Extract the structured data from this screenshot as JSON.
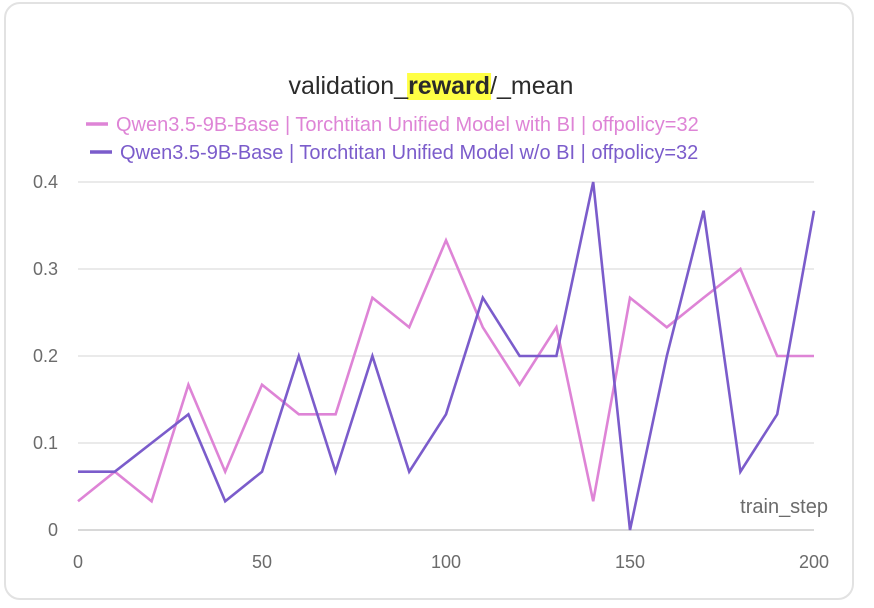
{
  "chart_data": {
    "type": "line",
    "title": {
      "prefix": "validation_",
      "highlight": "reward",
      "suffix": "/_mean",
      "highlight_color": "#ffff44"
    },
    "xlabel": "train_step",
    "ylabel": "",
    "xlim": [
      0,
      200
    ],
    "ylim": [
      0,
      0.4
    ],
    "xticks": [
      "0",
      "50",
      "100",
      "150",
      "200"
    ],
    "yticks": [
      "0",
      "0.1",
      "0.2",
      "0.3",
      "0.4"
    ],
    "grid": true,
    "legend_position": "top",
    "x": [
      0,
      10,
      20,
      30,
      40,
      50,
      60,
      70,
      80,
      90,
      100,
      110,
      120,
      130,
      140,
      150,
      160,
      170,
      180,
      190,
      200
    ],
    "series": [
      {
        "name": "Qwen3.5-9B-Base | Torchtitan Unified Model with BI | offpolicy=32",
        "color": "#de84d6",
        "values": [
          0.033,
          0.067,
          0.033,
          0.167,
          0.067,
          0.167,
          0.133,
          0.133,
          0.267,
          0.233,
          0.333,
          0.233,
          0.167,
          0.233,
          0.033,
          0.267,
          0.233,
          0.267,
          0.3,
          0.2,
          0.2
        ]
      },
      {
        "name": "Qwen3.5-9B-Base | Torchtitan Unified Model w/o BI | offpolicy=32",
        "color": "#7b5ccb",
        "values": [
          0.067,
          0.067,
          0.1,
          0.133,
          0.033,
          0.067,
          0.2,
          0.067,
          0.2,
          0.067,
          0.133,
          0.267,
          0.2,
          0.2,
          0.4,
          0.0,
          0.2,
          0.367,
          0.067,
          0.133,
          0.367
        ]
      }
    ]
  }
}
